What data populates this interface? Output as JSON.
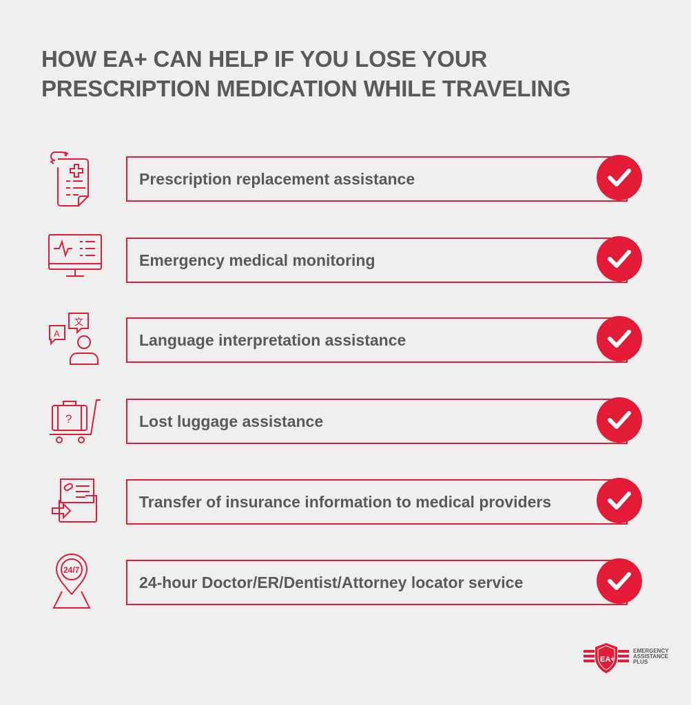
{
  "title": "HOW EA+ CAN HELP IF YOU LOSE YOUR PRESCRIPTION MEDICATION WHILE TRAVELING",
  "accent_color": "#e31b37",
  "text_color": "#58595b",
  "items": [
    {
      "label": "Prescription replacement assistance",
      "icon": "prescription-refill-icon",
      "checked": true
    },
    {
      "label": "Emergency medical monitoring",
      "icon": "medical-monitor-icon",
      "checked": true
    },
    {
      "label": "Language interpretation assistance",
      "icon": "interpreter-icon",
      "checked": true
    },
    {
      "label": "Lost luggage assistance",
      "icon": "luggage-cart-icon",
      "checked": true
    },
    {
      "label": "Transfer of insurance information to medical providers",
      "icon": "document-transfer-icon",
      "checked": true
    },
    {
      "label": "24-hour Doctor/ER/Dentist/Attorney locator service",
      "icon": "location-24-7-icon",
      "checked": true
    }
  ],
  "logo": {
    "mark": "EA+",
    "line1": "EMERGENCY",
    "line2": "ASSISTANCE",
    "line3": "PLUS"
  }
}
